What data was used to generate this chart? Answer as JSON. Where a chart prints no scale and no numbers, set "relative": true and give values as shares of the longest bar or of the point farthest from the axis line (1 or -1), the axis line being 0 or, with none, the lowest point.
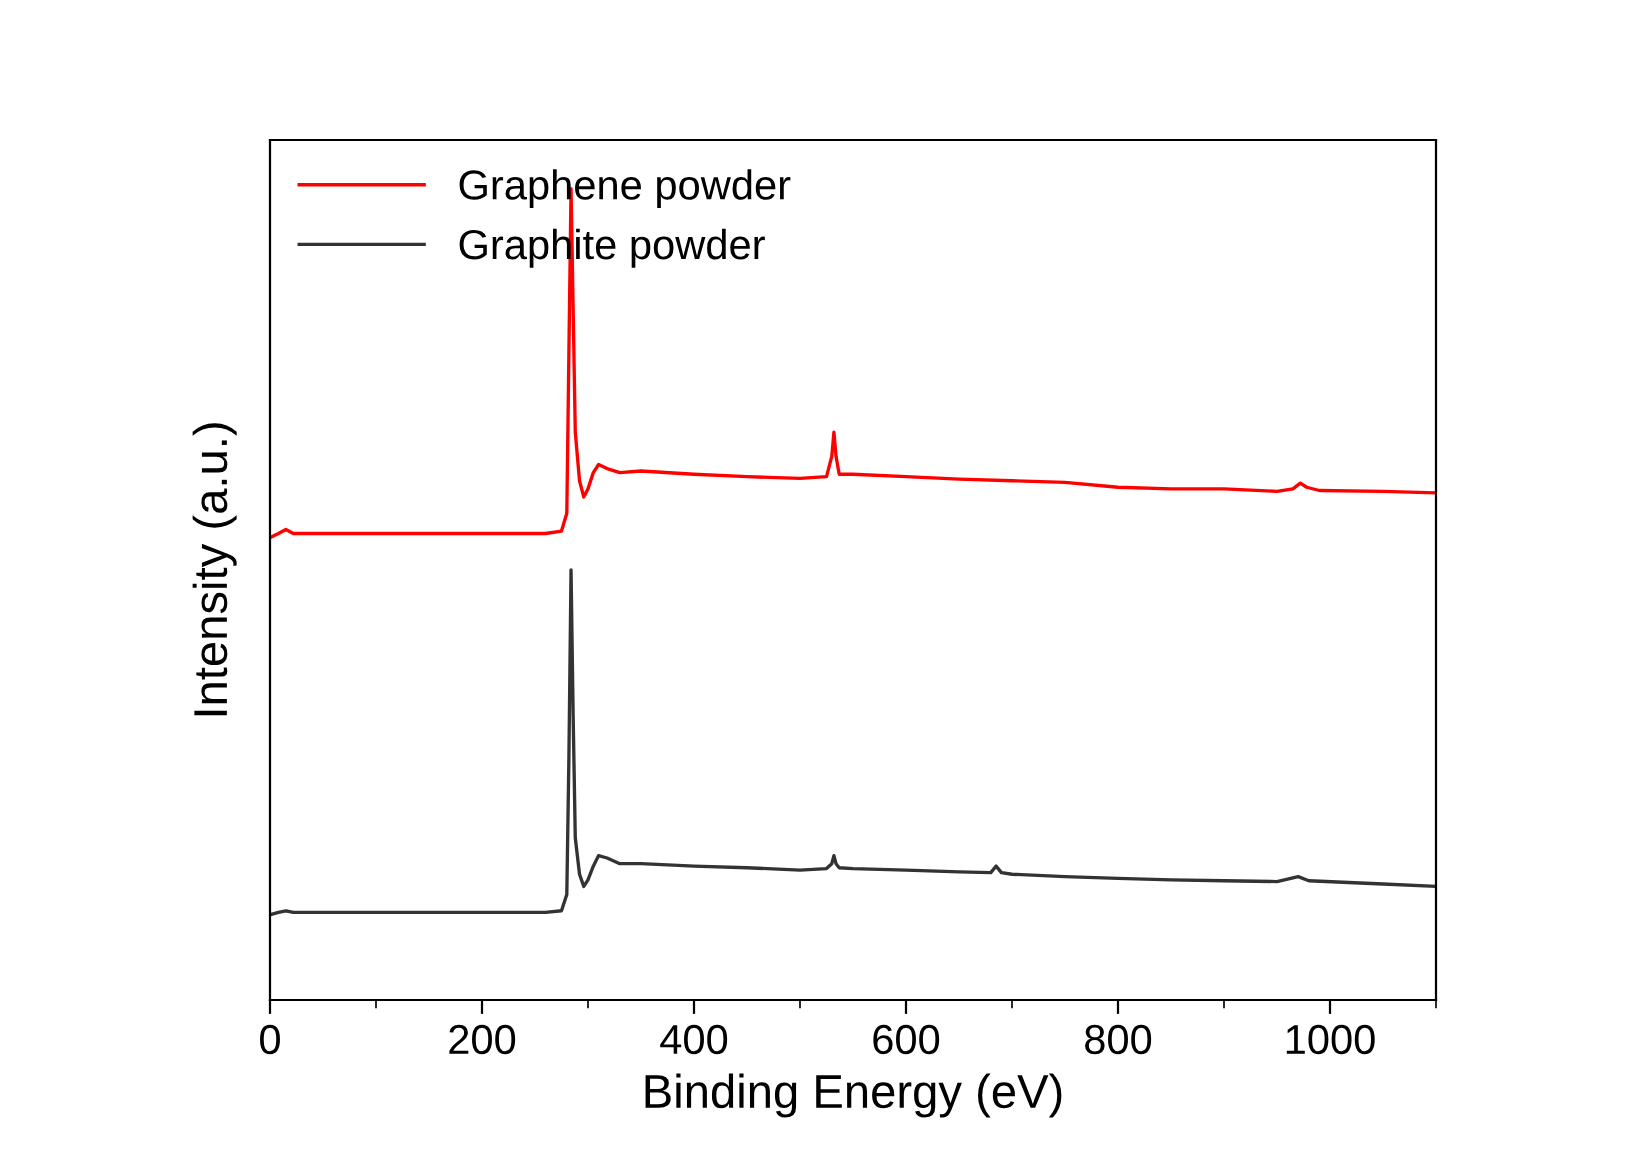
{
  "chart_data": {
    "type": "line",
    "xlabel": "Binding Energy (eV)",
    "ylabel": "Intensity (a.u.)",
    "relative": true,
    "xlim": [
      0,
      1100
    ],
    "xticks": [
      0,
      200,
      400,
      600,
      800,
      1000
    ],
    "legend": "top left",
    "grid": false,
    "tick_labels": "x",
    "series": [
      {
        "name": "Graphene powder",
        "color": "#ff0000",
        "x": [
          0,
          8,
          15,
          22,
          40,
          100,
          200,
          260,
          275,
          280,
          282,
          284,
          286,
          288,
          292,
          296,
          300,
          305,
          310,
          318,
          330,
          350,
          400,
          450,
          500,
          525,
          530,
          532,
          534,
          537,
          550,
          600,
          650,
          700,
          750,
          800,
          850,
          900,
          950,
          965,
          972,
          978,
          990,
          1050,
          1100
        ],
        "values": [
          0.57,
          0.575,
          0.58,
          0.575,
          0.575,
          0.575,
          0.575,
          0.575,
          0.578,
          0.6,
          0.8,
          1.0,
          0.85,
          0.7,
          0.64,
          0.62,
          0.63,
          0.65,
          0.66,
          0.655,
          0.65,
          0.652,
          0.648,
          0.645,
          0.643,
          0.645,
          0.67,
          0.7,
          0.67,
          0.648,
          0.648,
          0.645,
          0.642,
          0.64,
          0.638,
          0.632,
          0.63,
          0.63,
          0.627,
          0.63,
          0.637,
          0.632,
          0.628,
          0.627,
          0.625
        ]
      },
      {
        "name": "Graphite powder",
        "color": "#333333",
        "x": [
          0,
          8,
          15,
          22,
          40,
          100,
          200,
          260,
          275,
          280,
          282,
          284,
          286,
          288,
          292,
          296,
          300,
          305,
          310,
          318,
          330,
          350,
          400,
          450,
          500,
          525,
          530,
          532,
          534,
          537,
          550,
          600,
          650,
          680,
          685,
          690,
          700,
          750,
          800,
          850,
          900,
          950,
          970,
          980,
          1050,
          1100
        ],
        "values": [
          0.105,
          0.108,
          0.11,
          0.108,
          0.108,
          0.108,
          0.108,
          0.108,
          0.11,
          0.13,
          0.3,
          0.53,
          0.35,
          0.2,
          0.155,
          0.14,
          0.148,
          0.165,
          0.178,
          0.175,
          0.168,
          0.168,
          0.165,
          0.163,
          0.16,
          0.162,
          0.168,
          0.178,
          0.168,
          0.163,
          0.162,
          0.16,
          0.158,
          0.157,
          0.165,
          0.157,
          0.155,
          0.152,
          0.15,
          0.148,
          0.147,
          0.146,
          0.152,
          0.147,
          0.143,
          0.14
        ]
      }
    ]
  }
}
